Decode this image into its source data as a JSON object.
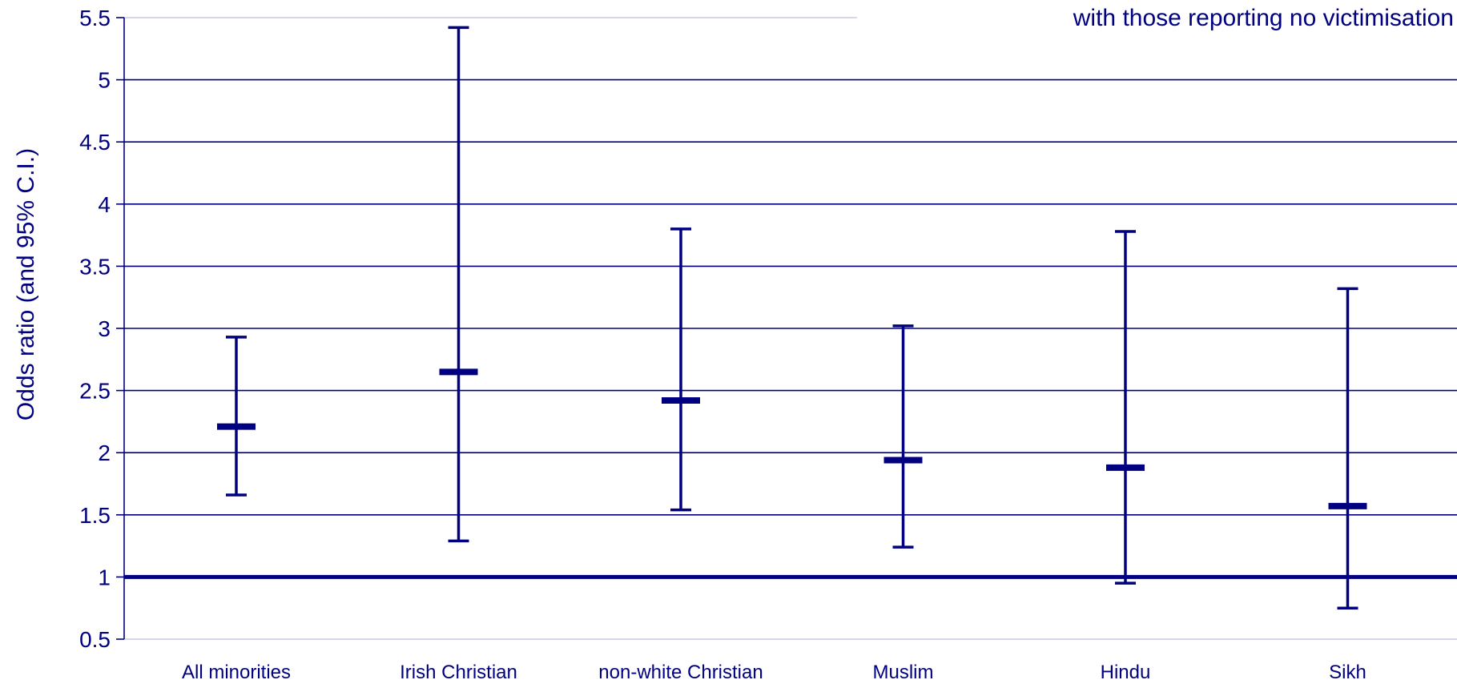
{
  "colors": {
    "series": "#000080",
    "grid": "#000080",
    "background": "#ffffff"
  },
  "annotation": "with those reporting no victimisation",
  "chart_data": {
    "type": "errorbar",
    "ylabel": "Odds ratio (and 95% C.I.)",
    "xlabel": "",
    "ylim": [
      0.5,
      5.5
    ],
    "yticks": [
      0.5,
      1,
      1.5,
      2,
      2.5,
      3,
      3.5,
      4,
      4.5,
      5,
      5.5
    ],
    "ytick_labels": [
      "0.5",
      "1",
      "1.5",
      "2",
      "2.5",
      "3",
      "3.5",
      "4",
      "4.5",
      "5",
      "5.5"
    ],
    "grid": true,
    "reference_line": 1,
    "categories": [
      "All minorities",
      "Irish Christian",
      "non-white Christian",
      "Muslim",
      "Hindu",
      "Sikh"
    ],
    "values": [
      2.21,
      2.65,
      2.42,
      1.94,
      1.88,
      1.57
    ],
    "lower": [
      1.66,
      1.29,
      1.54,
      1.24,
      0.95,
      0.75
    ],
    "upper": [
      2.93,
      5.42,
      3.8,
      3.02,
      3.78,
      3.32
    ]
  }
}
